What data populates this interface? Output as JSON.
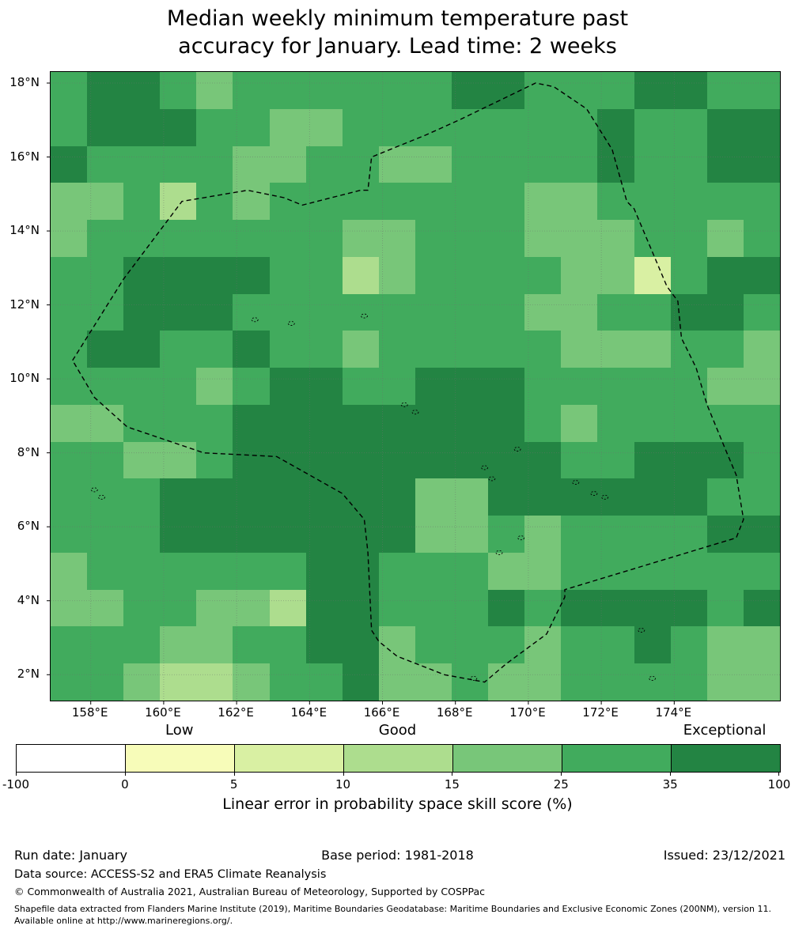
{
  "title": {
    "line1": "Median weekly minimum temperature past",
    "line2": "accuracy for January. Lead time: 2 weeks"
  },
  "footer": {
    "run_date": "Run date: January",
    "base_period": "Base period: 1981-2018",
    "issued": "Issued: 23/12/2021",
    "data_source": "Data source: ACCESS-S2 and ERA5 Climate Reanalysis",
    "copyright": "© Commonwealth of Australia 2021, Australian Bureau of Meteorology, Supported by COSPPac",
    "shapefile_note": "Shapefile data extracted from Flanders Marine Institute (2019), Maritime Boundaries Geodatabase: Maritime Boundaries and Exclusive Economic Zones (200NM), version 11. Available online at http://www.marineregions.org/."
  },
  "chart_data": {
    "type": "heatmap",
    "title": "Median weekly minimum temperature past accuracy for January. Lead time: 2 weeks",
    "lon_range": [
      156.9,
      176.9
    ],
    "lat_range": [
      18.3,
      1.3
    ],
    "x_ticks": [
      {
        "lon": 158,
        "label": "158°E"
      },
      {
        "lon": 160,
        "label": "160°E"
      },
      {
        "lon": 162,
        "label": "162°E"
      },
      {
        "lon": 164,
        "label": "164°E"
      },
      {
        "lon": 166,
        "label": "166°E"
      },
      {
        "lon": 168,
        "label": "168°E"
      },
      {
        "lon": 170,
        "label": "170°E"
      },
      {
        "lon": 172,
        "label": "172°E"
      },
      {
        "lon": 174,
        "label": "174°E"
      }
    ],
    "y_ticks": [
      {
        "lat": 18,
        "label": "18°N"
      },
      {
        "lat": 16,
        "label": "16°N"
      },
      {
        "lat": 14,
        "label": "14°N"
      },
      {
        "lat": 12,
        "label": "12°N"
      },
      {
        "lat": 10,
        "label": "10°N"
      },
      {
        "lat": 8,
        "label": "8°N"
      },
      {
        "lat": 6,
        "label": "6°N"
      },
      {
        "lat": 4,
        "label": "4°N"
      },
      {
        "lat": 2,
        "label": "2°N"
      }
    ],
    "class_colors": {
      "W": "#ffffff",
      "A": "#f7fcb9",
      "B": "#d9f0a3",
      "C": "#addd8e",
      "D": "#78c679",
      "E": "#41ab5d",
      "F": "#238443"
    },
    "class_value_bins": {
      "W": "-100-0",
      "A": "0-5",
      "B": "5-10",
      "C": "10-15",
      "D": "15-25",
      "E": "25-35",
      "F": "35-100"
    },
    "grid_rows_top_to_bottom": [
      "EFFEDEEEEEEFFEEEFFEE",
      "EFFFEEDDEEEEEEEFEEFF",
      "FEEEEDDEEDDEEEEFEEFF",
      "DDECEDEEEEEEEDDEEEEE",
      "DEEEEEEEDDEEEDDDEEDE",
      "EEFFFFEECDEEEEDDBEFF",
      "EEFFFEEEEEEEEDDEEFFE",
      "EFFEEFEEDEEEEEDDDEED",
      "EEEEDEFFEEFFFEEEEEDD",
      "DDEEEFFFFFFFFEDEEEEE",
      "EEDDEFFFFFFFFFEEFFFE",
      "EEEFFFFFFFDDFFFFFFEE",
      "EEEFFFFFFFDDEDEEEEFF",
      "DEEEEEEFFEEEDDEEEEEE",
      "DDEEDDCFFEEEFEFFFFEF",
      "EEEDDEEFFDEEEDEEFEDD",
      "EEDCCDEEFDDEDDEEEEDD"
    ],
    "colorbar": {
      "title": "Linear error in probability space skill score (%)",
      "tick_labels": [
        "-100",
        "0",
        "5",
        "10",
        "15",
        "25",
        "35",
        "100"
      ],
      "segment_colors": [
        "#ffffff",
        "#f7fcb9",
        "#d9f0a3",
        "#addd8e",
        "#78c679",
        "#41ab5d",
        "#238443"
      ],
      "quality_labels": [
        {
          "text": "Low",
          "pos": 1.5
        },
        {
          "text": "Good",
          "pos": 3.5
        },
        {
          "text": "Exceptional",
          "pos": 6.5
        }
      ]
    },
    "eez_boundary_lonlat": [
      [
        157.5,
        10.5
      ],
      [
        158.9,
        12.7
      ],
      [
        160.5,
        14.8
      ],
      [
        162.3,
        15.1
      ],
      [
        163.3,
        14.9
      ],
      [
        163.8,
        14.7
      ],
      [
        164.2,
        14.8
      ],
      [
        165.4,
        15.1
      ],
      [
        165.6,
        15.1
      ],
      [
        165.7,
        16.0
      ],
      [
        167.2,
        16.6
      ],
      [
        168.1,
        17.0
      ],
      [
        170.2,
        18.0
      ],
      [
        170.7,
        17.9
      ],
      [
        171.6,
        17.3
      ],
      [
        172.3,
        16.2
      ],
      [
        172.7,
        14.8
      ],
      [
        172.9,
        14.6
      ],
      [
        173.8,
        12.5
      ],
      [
        174.1,
        12.1
      ],
      [
        174.2,
        11.1
      ],
      [
        174.6,
        10.3
      ],
      [
        174.9,
        9.3
      ],
      [
        175.4,
        8.1
      ],
      [
        175.7,
        7.4
      ],
      [
        175.9,
        6.2
      ],
      [
        175.7,
        5.7
      ],
      [
        171.0,
        4.3
      ],
      [
        171.0,
        4.1
      ],
      [
        170.5,
        3.1
      ],
      [
        169.4,
        2.3
      ],
      [
        168.8,
        1.8
      ],
      [
        167.7,
        2.0
      ],
      [
        166.4,
        2.5
      ],
      [
        165.9,
        2.9
      ],
      [
        165.7,
        3.2
      ],
      [
        165.6,
        5.3
      ],
      [
        165.5,
        6.2
      ],
      [
        164.9,
        6.9
      ],
      [
        163.1,
        7.9
      ],
      [
        161.1,
        8.0
      ],
      [
        159.0,
        8.7
      ],
      [
        158.1,
        9.5
      ]
    ],
    "islands_lonlat": [
      [
        162.5,
        11.6
      ],
      [
        163.5,
        11.5
      ],
      [
        165.5,
        11.7
      ],
      [
        158.1,
        7.0
      ],
      [
        158.3,
        6.8
      ],
      [
        166.6,
        9.3
      ],
      [
        166.9,
        9.1
      ],
      [
        168.8,
        7.6
      ],
      [
        169.0,
        7.3
      ],
      [
        169.7,
        8.1
      ],
      [
        171.3,
        7.2
      ],
      [
        171.8,
        6.9
      ],
      [
        172.1,
        6.8
      ],
      [
        169.8,
        5.7
      ],
      [
        169.2,
        5.3
      ],
      [
        173.1,
        3.2
      ],
      [
        173.4,
        1.9
      ],
      [
        168.5,
        1.9
      ]
    ]
  }
}
